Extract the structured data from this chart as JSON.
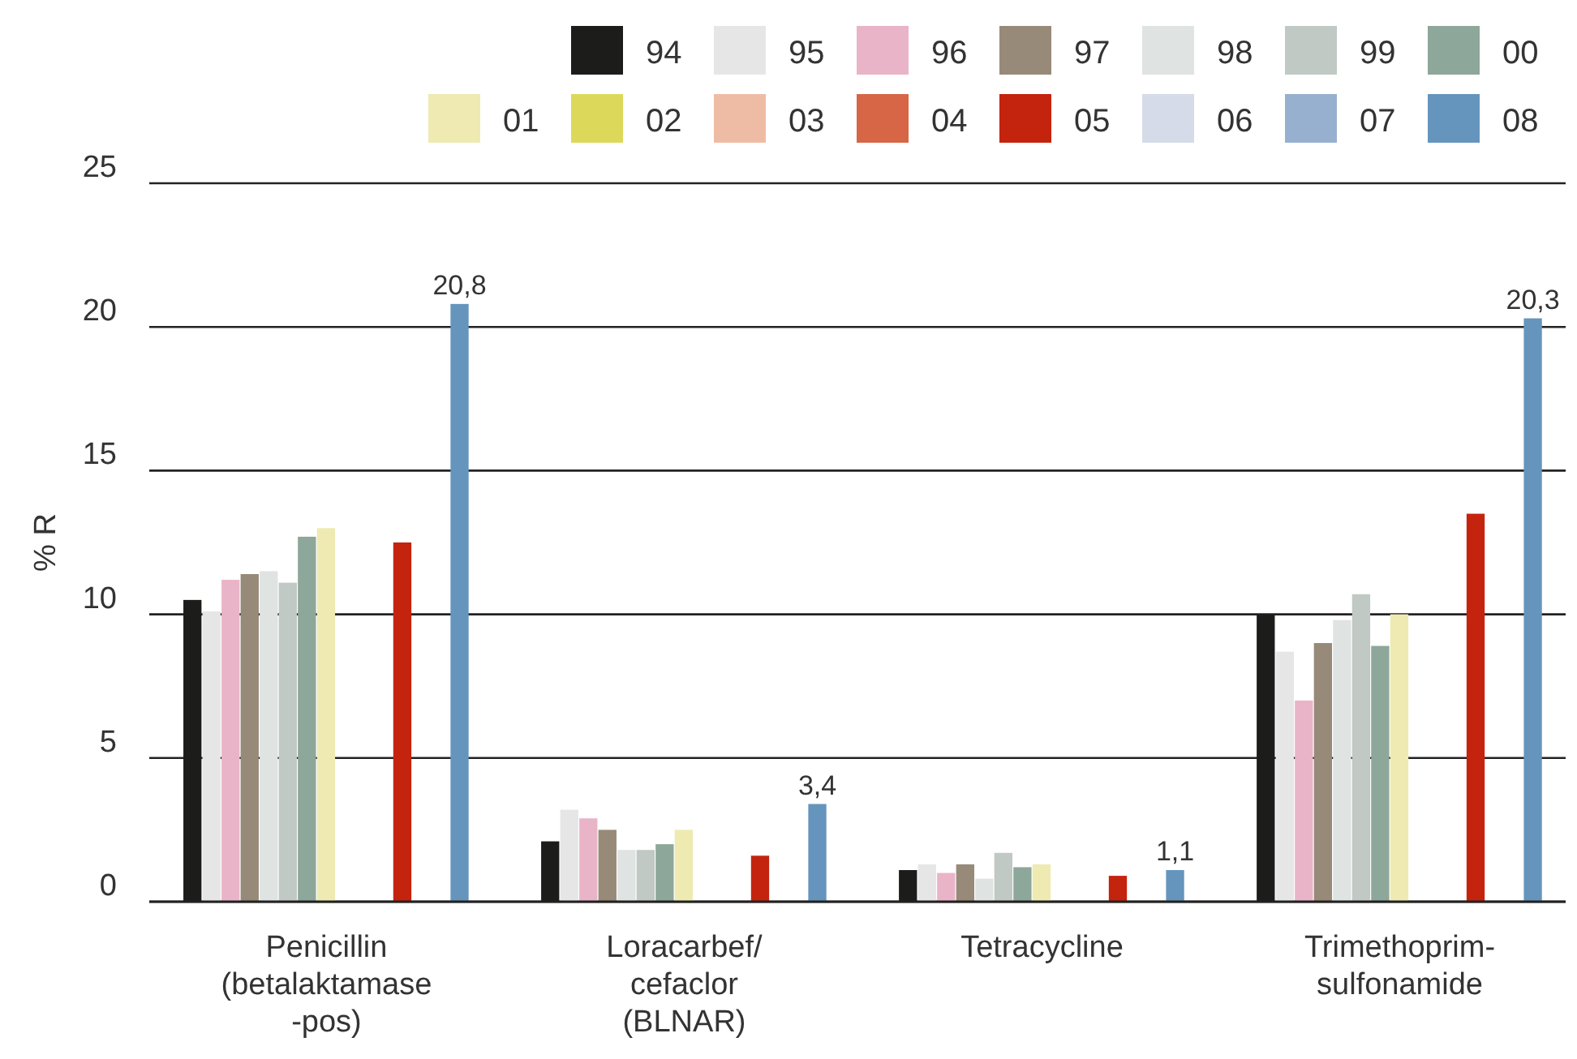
{
  "chart_data": {
    "type": "bar",
    "ylabel": "% R",
    "categories": [
      "Penicillin\n(betalaktamase\n-pos)",
      "Loracarbef/\ncefaclor\n(BLNAR)",
      "Tetracycline",
      "Trimethoprim-\nsulfonamide"
    ],
    "ylim": [
      0,
      25
    ],
    "yticks": [
      0,
      5,
      10,
      15,
      20,
      25
    ],
    "grid": "y",
    "legend": "top right",
    "series": [
      {
        "name": "94",
        "color": "#1c1c1a",
        "values": [
          10.5,
          2.1,
          1.1,
          10.0
        ]
      },
      {
        "name": "95",
        "color": "#e6e6e6",
        "values": [
          10.1,
          3.2,
          1.3,
          8.7
        ]
      },
      {
        "name": "96",
        "color": "#eab4c8",
        "values": [
          11.2,
          2.9,
          1.0,
          7.0
        ]
      },
      {
        "name": "97",
        "color": "#978a78",
        "values": [
          11.4,
          2.5,
          1.3,
          9.0
        ]
      },
      {
        "name": "98",
        "color": "#dfe3e1",
        "values": [
          11.5,
          1.8,
          0.8,
          9.8
        ]
      },
      {
        "name": "99",
        "color": "#c0c9c3",
        "values": [
          11.1,
          1.8,
          1.7,
          10.7
        ]
      },
      {
        "name": "00",
        "color": "#8da79a",
        "values": [
          12.7,
          2.0,
          1.2,
          8.9
        ]
      },
      {
        "name": "01",
        "color": "#eeeab2",
        "values": [
          13.0,
          2.5,
          1.3,
          10.0
        ]
      },
      {
        "name": "02",
        "color": "#dcd95a",
        "values": [
          null,
          null,
          null,
          null
        ]
      },
      {
        "name": "03",
        "color": "#eebca5",
        "values": [
          null,
          null,
          null,
          null
        ]
      },
      {
        "name": "04",
        "color": "#d66645",
        "values": [
          null,
          null,
          null,
          null
        ]
      },
      {
        "name": "05",
        "color": "#c4230e",
        "values": [
          12.5,
          1.6,
          0.9,
          13.5
        ]
      },
      {
        "name": "06",
        "color": "#d5dbe8",
        "values": [
          null,
          null,
          null,
          null
        ]
      },
      {
        "name": "07",
        "color": "#98b0cf",
        "values": [
          null,
          null,
          null,
          null
        ]
      },
      {
        "name": "08",
        "color": "#6595bd",
        "values": [
          20.8,
          3.4,
          1.1,
          20.3
        ],
        "value_labels": [
          "20,8",
          "3,4",
          "1,1",
          "20,3"
        ]
      }
    ]
  }
}
